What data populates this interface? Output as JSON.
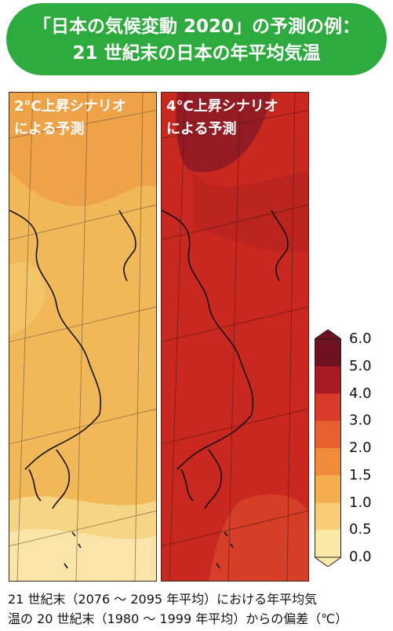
{
  "title": {
    "line1": "「日本の気候変動 2020」の予測の例：",
    "line2": "21 世紀末の日本の年平均気温"
  },
  "panels": [
    {
      "caption_line1": "2°C上昇シナリオ",
      "caption_line2": "による予測",
      "base_color": "#f1b85a"
    },
    {
      "caption_line1": "4°C上昇シナリオ",
      "caption_line2": "による予測",
      "base_color": "#c8281f"
    }
  ],
  "colorbar": {
    "unit": "°C",
    "ticks": [
      "6.0",
      "5.0",
      "4.0",
      "3.0",
      "2.0",
      "1.5",
      "1.0",
      "0.5",
      "0.0"
    ],
    "colors": [
      "#6e1120",
      "#a81b22",
      "#d73a28",
      "#e6612e",
      "#f08b3b",
      "#f6ad4e",
      "#f9cd76",
      "#fbe9a6"
    ]
  },
  "footnote": {
    "line1": "21 世紀末（2076 ～ 2095 年平均）における年平均気",
    "line2": "温の 20 世紀末（1980 ～ 1999 年平均）からの偏差（℃）"
  }
}
